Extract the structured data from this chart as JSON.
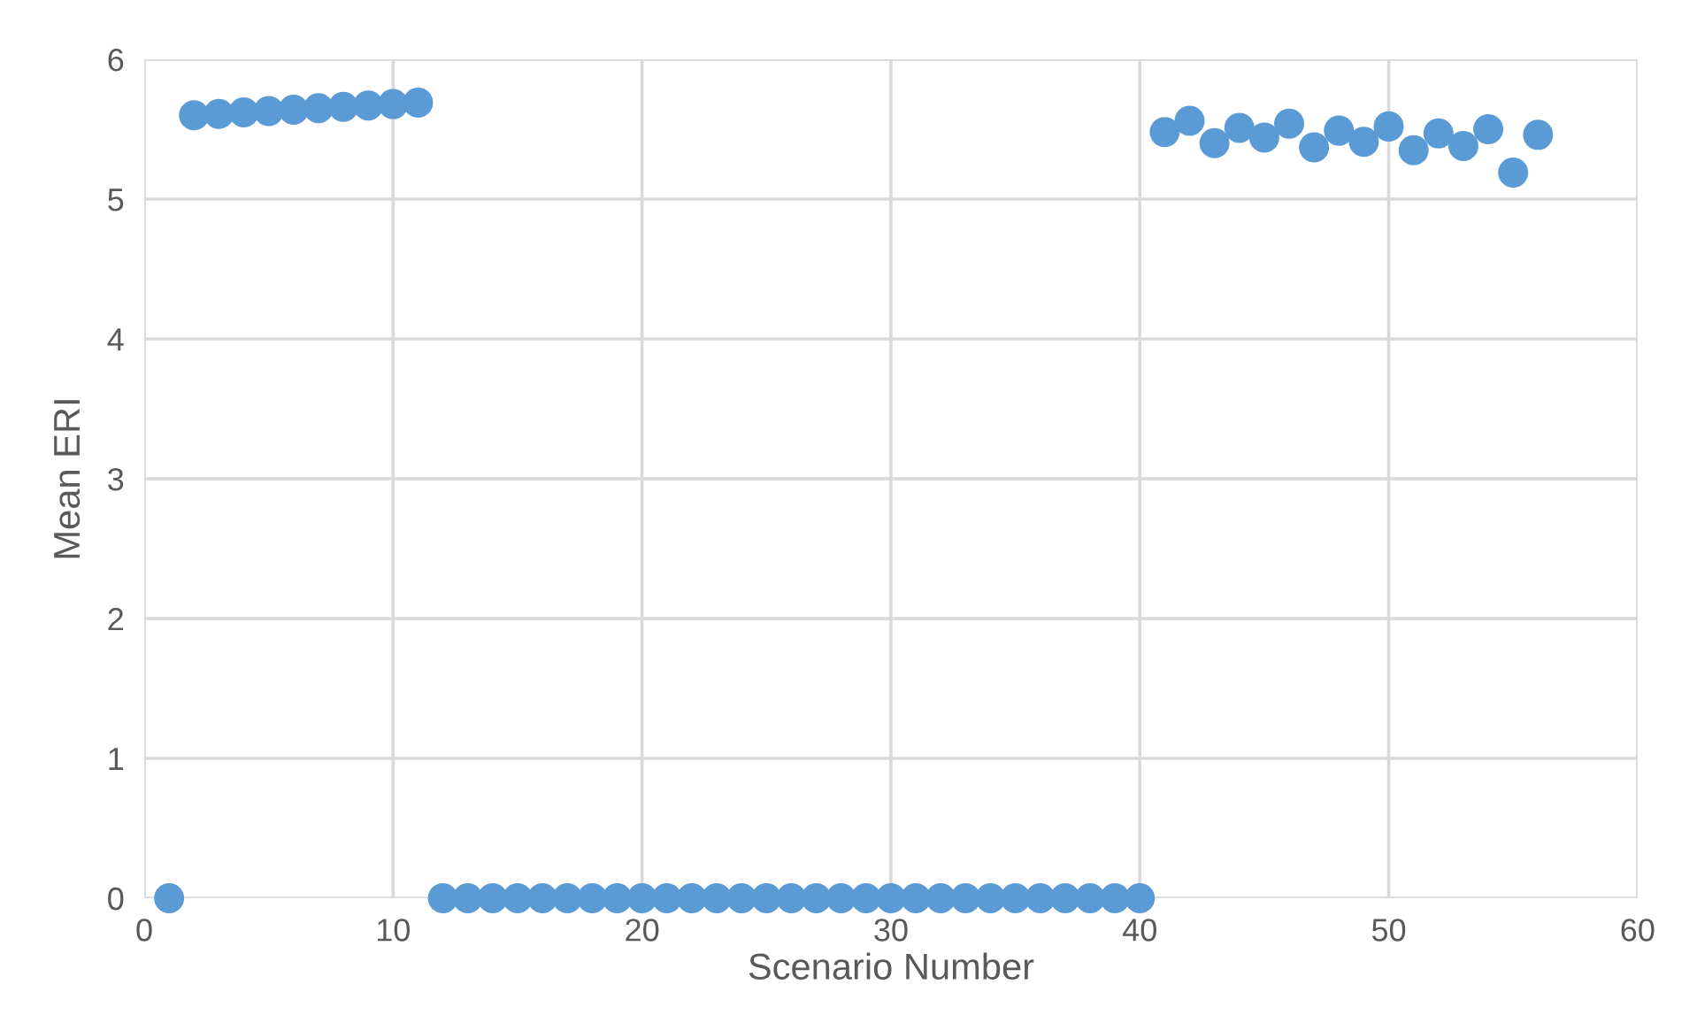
{
  "chart_data": {
    "type": "scatter",
    "xlabel": "Scenario Number",
    "ylabel": "Mean ERI",
    "x": [
      1,
      2,
      3,
      4,
      5,
      6,
      7,
      8,
      9,
      10,
      11,
      12,
      13,
      14,
      15,
      16,
      17,
      18,
      19,
      20,
      21,
      22,
      23,
      24,
      25,
      26,
      27,
      28,
      29,
      30,
      31,
      32,
      33,
      34,
      35,
      36,
      37,
      38,
      39,
      40,
      41,
      42,
      43,
      44,
      45,
      46,
      47,
      48,
      49,
      50,
      51,
      52,
      53,
      54,
      55,
      56
    ],
    "series": [
      {
        "color": "#5b9bd5",
        "values": [
          0,
          5.6,
          5.61,
          5.62,
          5.63,
          5.64,
          5.65,
          5.66,
          5.67,
          5.68,
          5.69,
          0,
          0,
          0,
          0,
          0,
          0,
          0,
          0,
          0,
          0,
          0,
          0,
          0,
          0,
          0,
          0,
          0,
          0,
          0,
          0,
          0,
          0,
          0,
          0,
          0,
          0,
          0,
          0,
          0,
          5.48,
          5.56,
          5.4,
          5.51,
          5.44,
          5.54,
          5.37,
          5.49,
          5.41,
          5.52,
          5.35,
          5.47,
          5.38,
          5.5,
          5.19,
          5.46
        ]
      }
    ],
    "xlim": [
      0,
      60
    ],
    "xticks": [
      0,
      10,
      20,
      30,
      40,
      50,
      60
    ],
    "ylim": [
      0,
      6
    ],
    "yticks": [
      0,
      1,
      2,
      3,
      4,
      5,
      6
    ],
    "grid": true,
    "marker": "circle"
  }
}
